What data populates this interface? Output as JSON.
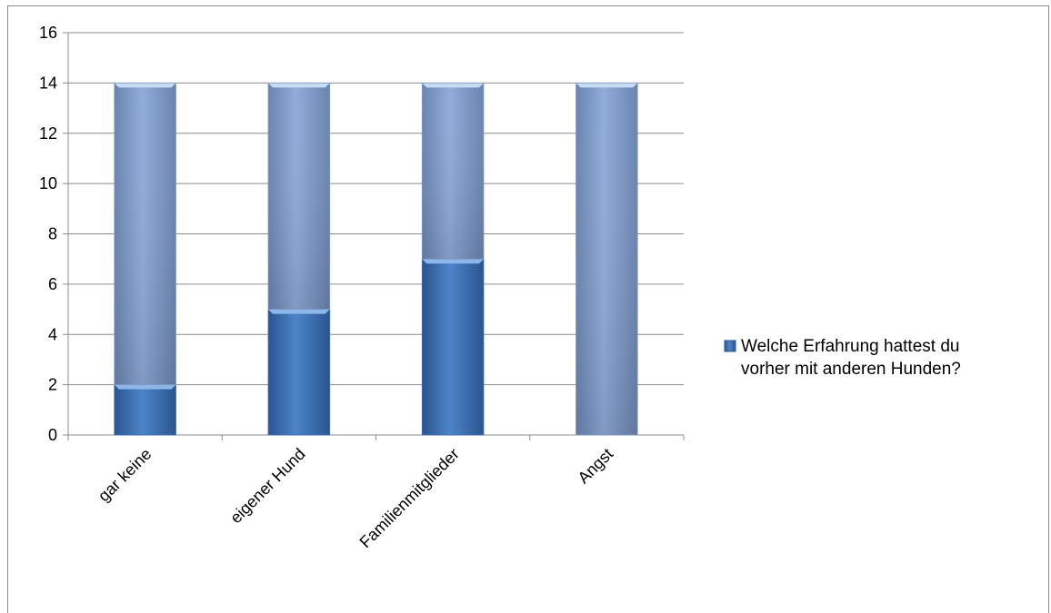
{
  "chart_data": {
    "type": "bar",
    "stacked": true,
    "categories": [
      "gar keine",
      "eigener Hund",
      "Familienmitglieder",
      "Angst"
    ],
    "series": [
      {
        "name": "Welche Erfahrung hattest du vorher mit anderen Hunden?",
        "values": [
          2,
          5,
          7,
          0
        ]
      },
      {
        "name": "",
        "values": [
          12,
          9,
          7,
          14
        ]
      }
    ],
    "yticks": [
      "0",
      "2",
      "4",
      "6",
      "8",
      "10",
      "12",
      "14",
      "16"
    ],
    "ylim": [
      0,
      16
    ],
    "grid": true,
    "legend": {
      "placement": "right",
      "lines": [
        "Welche Erfahrung hattest du",
        "vorher mit anderen Hunden?"
      ]
    },
    "colors": {
      "series1_dark": "#2f5f9c",
      "series1_light": "#4f86cc",
      "series2_dark": "#6f89b6",
      "series2_light": "#93afde",
      "grid": "#8c8c8c"
    }
  }
}
